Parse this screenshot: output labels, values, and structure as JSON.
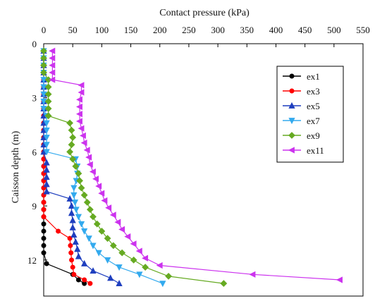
{
  "chart_data": {
    "type": "line",
    "title": "",
    "xlabel": "Contact pressure (kPa)",
    "ylabel": "Caisson depth (m)",
    "xlim": [
      0,
      550
    ],
    "ylim": [
      0,
      14
    ],
    "y_inverted": true,
    "x_axis_position": "top",
    "xticks": [
      0,
      50,
      100,
      150,
      200,
      250,
      300,
      350,
      400,
      450,
      500,
      550
    ],
    "yticks": [
      0,
      3,
      6,
      9,
      12
    ],
    "grid": false,
    "legend_position": "top-right",
    "series": [
      {
        "name": "ex1",
        "color": "#000000",
        "marker": "circle",
        "points": [
          [
            0,
            0.4
          ],
          [
            0,
            0.8
          ],
          [
            0,
            1.2
          ],
          [
            0,
            1.6
          ],
          [
            0,
            2.0
          ],
          [
            0,
            2.4
          ],
          [
            0,
            2.8
          ],
          [
            0,
            3.2
          ],
          [
            0,
            3.6
          ],
          [
            0,
            4.0
          ],
          [
            0,
            4.4
          ],
          [
            0,
            4.8
          ],
          [
            0,
            5.2
          ],
          [
            0,
            5.6
          ],
          [
            0,
            6.0
          ],
          [
            0,
            6.4
          ],
          [
            0,
            6.8
          ],
          [
            0,
            7.2
          ],
          [
            0,
            7.6
          ],
          [
            0,
            8.0
          ],
          [
            0,
            8.4
          ],
          [
            0,
            8.8
          ],
          [
            0,
            9.2
          ],
          [
            0,
            9.6
          ],
          [
            0,
            10.0
          ],
          [
            0,
            10.4
          ],
          [
            0,
            10.8
          ],
          [
            0,
            11.2
          ],
          [
            0,
            11.6
          ],
          [
            5,
            12.2
          ],
          [
            50,
            12.8
          ],
          [
            60,
            13.1
          ],
          [
            70,
            13.3
          ]
        ]
      },
      {
        "name": "ex3",
        "color": "#ff0000",
        "marker": "circle",
        "points": [
          [
            0,
            0.4
          ],
          [
            0,
            0.8
          ],
          [
            0,
            1.2
          ],
          [
            0,
            1.6
          ],
          [
            0,
            2.0
          ],
          [
            0,
            2.4
          ],
          [
            0,
            2.8
          ],
          [
            0,
            3.2
          ],
          [
            0,
            3.6
          ],
          [
            0,
            4.0
          ],
          [
            0,
            4.4
          ],
          [
            0,
            4.8
          ],
          [
            0,
            5.2
          ],
          [
            0,
            5.6
          ],
          [
            0,
            6.0
          ],
          [
            0,
            6.4
          ],
          [
            0,
            6.8
          ],
          [
            0,
            7.2
          ],
          [
            0,
            7.6
          ],
          [
            0,
            8.0
          ],
          [
            0,
            8.4
          ],
          [
            0,
            8.8
          ],
          [
            0,
            9.2
          ],
          [
            0,
            9.6
          ],
          [
            25,
            10.4
          ],
          [
            45,
            10.8
          ],
          [
            46,
            11.2
          ],
          [
            47,
            11.6
          ],
          [
            48,
            12.0
          ],
          [
            50,
            12.4
          ],
          [
            52,
            12.8
          ],
          [
            70,
            13.1
          ],
          [
            80,
            13.3
          ]
        ]
      },
      {
        "name": "ex5",
        "color": "#1f3fbf",
        "marker": "triangle-up",
        "points": [
          [
            0,
            0.4
          ],
          [
            0,
            0.8
          ],
          [
            0,
            1.2
          ],
          [
            0,
            1.6
          ],
          [
            0,
            2.0
          ],
          [
            0,
            2.4
          ],
          [
            0,
            2.8
          ],
          [
            0,
            3.2
          ],
          [
            0,
            3.6
          ],
          [
            0,
            4.0
          ],
          [
            0,
            4.4
          ],
          [
            0,
            4.8
          ],
          [
            0,
            5.2
          ],
          [
            0,
            5.6
          ],
          [
            0,
            6.0
          ],
          [
            5,
            6.6
          ],
          [
            5,
            7.0
          ],
          [
            5,
            7.4
          ],
          [
            5,
            7.8
          ],
          [
            5,
            8.2
          ],
          [
            45,
            8.6
          ],
          [
            48,
            9.0
          ],
          [
            48,
            9.4
          ],
          [
            50,
            9.8
          ],
          [
            50,
            10.2
          ],
          [
            52,
            10.6
          ],
          [
            55,
            11.0
          ],
          [
            58,
            11.4
          ],
          [
            60,
            11.8
          ],
          [
            70,
            12.2
          ],
          [
            85,
            12.6
          ],
          [
            115,
            13.0
          ],
          [
            130,
            13.3
          ]
        ]
      },
      {
        "name": "ex7",
        "color": "#33aaee",
        "marker": "triangle-down",
        "points": [
          [
            0,
            0.4
          ],
          [
            0,
            0.8
          ],
          [
            0,
            1.2
          ],
          [
            0,
            1.6
          ],
          [
            0,
            2.0
          ],
          [
            0,
            2.4
          ],
          [
            0,
            2.8
          ],
          [
            0,
            3.2
          ],
          [
            0,
            3.6
          ],
          [
            5,
            4.0
          ],
          [
            5,
            4.4
          ],
          [
            5,
            4.8
          ],
          [
            5,
            5.2
          ],
          [
            5,
            5.6
          ],
          [
            5,
            6.0
          ],
          [
            55,
            6.4
          ],
          [
            58,
            6.8
          ],
          [
            58,
            7.2
          ],
          [
            56,
            7.6
          ],
          [
            52,
            8.0
          ],
          [
            52,
            8.4
          ],
          [
            54,
            8.8
          ],
          [
            56,
            9.2
          ],
          [
            60,
            9.6
          ],
          [
            65,
            10.0
          ],
          [
            70,
            10.4
          ],
          [
            78,
            10.8
          ],
          [
            85,
            11.2
          ],
          [
            95,
            11.6
          ],
          [
            110,
            12.0
          ],
          [
            130,
            12.4
          ],
          [
            165,
            12.8
          ],
          [
            205,
            13.3
          ]
        ]
      },
      {
        "name": "ex9",
        "color": "#66aa22",
        "marker": "diamond",
        "points": [
          [
            0,
            0.4
          ],
          [
            0,
            0.8
          ],
          [
            0,
            1.2
          ],
          [
            0,
            1.6
          ],
          [
            8,
            2.0
          ],
          [
            8,
            2.4
          ],
          [
            8,
            2.8
          ],
          [
            8,
            3.2
          ],
          [
            8,
            3.6
          ],
          [
            8,
            4.0
          ],
          [
            45,
            4.4
          ],
          [
            48,
            4.8
          ],
          [
            50,
            5.2
          ],
          [
            48,
            5.6
          ],
          [
            45,
            6.0
          ],
          [
            50,
            6.4
          ],
          [
            55,
            6.8
          ],
          [
            60,
            7.2
          ],
          [
            62,
            7.6
          ],
          [
            65,
            8.0
          ],
          [
            70,
            8.4
          ],
          [
            75,
            8.8
          ],
          [
            80,
            9.2
          ],
          [
            85,
            9.6
          ],
          [
            92,
            10.0
          ],
          [
            100,
            10.4
          ],
          [
            110,
            10.8
          ],
          [
            120,
            11.2
          ],
          [
            135,
            11.6
          ],
          [
            155,
            12.0
          ],
          [
            175,
            12.4
          ],
          [
            215,
            12.9
          ],
          [
            310,
            13.3
          ]
        ]
      },
      {
        "name": "ex11",
        "color": "#cc33ee",
        "marker": "triangle-left",
        "points": [
          [
            15,
            0.4
          ],
          [
            15,
            0.8
          ],
          [
            15,
            1.2
          ],
          [
            15,
            1.6
          ],
          [
            15,
            2.0
          ],
          [
            65,
            2.3
          ],
          [
            65,
            2.7
          ],
          [
            62,
            3.1
          ],
          [
            62,
            3.5
          ],
          [
            62,
            3.9
          ],
          [
            62,
            4.3
          ],
          [
            65,
            4.7
          ],
          [
            68,
            5.1
          ],
          [
            70,
            5.5
          ],
          [
            75,
            5.9
          ],
          [
            78,
            6.3
          ],
          [
            80,
            6.7
          ],
          [
            85,
            7.1
          ],
          [
            90,
            7.5
          ],
          [
            95,
            7.9
          ],
          [
            100,
            8.3
          ],
          [
            105,
            8.7
          ],
          [
            112,
            9.1
          ],
          [
            120,
            9.5
          ],
          [
            128,
            9.9
          ],
          [
            135,
            10.3
          ],
          [
            145,
            10.7
          ],
          [
            155,
            11.1
          ],
          [
            165,
            11.5
          ],
          [
            175,
            11.9
          ],
          [
            200,
            12.3
          ],
          [
            360,
            12.8
          ],
          [
            510,
            13.1
          ]
        ]
      }
    ]
  }
}
